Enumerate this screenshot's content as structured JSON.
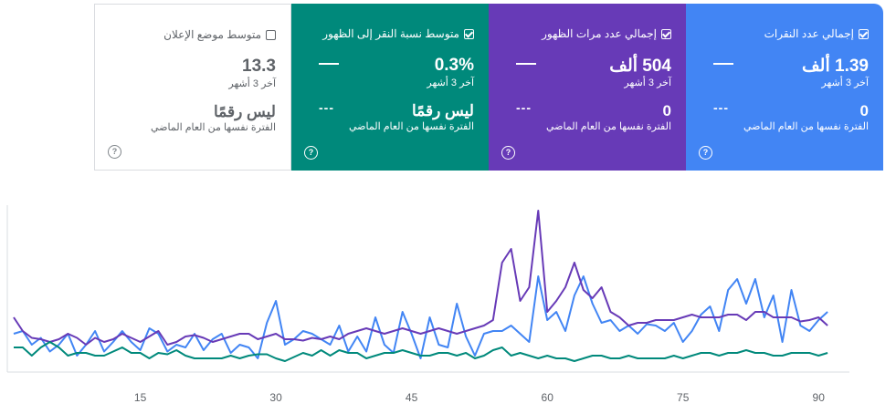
{
  "cards": [
    {
      "key": "clicks",
      "title": "إجمالي عدد النقرات",
      "checked": true,
      "value": "1.39 ألف",
      "period": "آخر 3 أشهر",
      "compare_value": "0",
      "compare_label": "الفترة نفسها من العام الماضي",
      "dash": "—",
      "dots": "---",
      "help": "?"
    },
    {
      "key": "impr",
      "title": "إجمالي عدد مرات الظهور",
      "checked": true,
      "value": "504 ألف",
      "period": "آخر 3 أشهر",
      "compare_value": "0",
      "compare_label": "الفترة نفسها من العام الماضي",
      "dash": "—",
      "dots": "---",
      "help": "?"
    },
    {
      "key": "ctr",
      "title": "متوسط نسبة النقر إلى الظهور",
      "checked": true,
      "value": "0.3%",
      "period": "آخر 3 أشهر",
      "compare_value": "ليس رقمًا",
      "compare_label": "الفترة نفسها من العام الماضي",
      "dash": "—",
      "dots": "---",
      "help": "?"
    },
    {
      "key": "pos",
      "title": "متوسط موضع الإعلان",
      "checked": false,
      "value": "13.3",
      "period": "آخر 3 أشهر",
      "compare_value": "ليس رقمًا",
      "compare_label": "الفترة نفسها من العام الماضي",
      "dash": "",
      "dots": "",
      "help": "?"
    }
  ],
  "chart_data": {
    "type": "line",
    "x_ticks": [
      15,
      30,
      45,
      60,
      75,
      90
    ],
    "xlim": [
      1,
      92
    ],
    "ylim": [
      0,
      100
    ],
    "colors": {
      "clicks": "#4285f4",
      "impr": "#673ab7",
      "ctr": "#00897b"
    },
    "series": [
      {
        "key": "clicks",
        "values": [
          28,
          30,
          20,
          25,
          15,
          20,
          28,
          12,
          20,
          30,
          15,
          22,
          30,
          22,
          16,
          32,
          28,
          15,
          20,
          18,
          28,
          16,
          24,
          28,
          14,
          20,
          18,
          10,
          36,
          52,
          20,
          24,
          30,
          28,
          24,
          20,
          34,
          15,
          26,
          15,
          40,
          20,
          14,
          44,
          28,
          10,
          40,
          20,
          18,
          50,
          26,
          12,
          28,
          30,
          30,
          34,
          28,
          22,
          70,
          38,
          44,
          30,
          56,
          70,
          50,
          36,
          38,
          30,
          34,
          28,
          35,
          34,
          30,
          36,
          22,
          30,
          42,
          48,
          30,
          60,
          68,
          50,
          68,
          40,
          56,
          22,
          60,
          34,
          30,
          38,
          44
        ]
      },
      {
        "key": "impr",
        "values": [
          40,
          30,
          25,
          24,
          22,
          24,
          28,
          25,
          20,
          25,
          22,
          24,
          28,
          25,
          22,
          26,
          30,
          20,
          22,
          26,
          27,
          25,
          22,
          24,
          26,
          28,
          28,
          24,
          26,
          28,
          24,
          24,
          23,
          25,
          24,
          26,
          24,
          28,
          30,
          32,
          30,
          28,
          30,
          32,
          30,
          28,
          30,
          32,
          30,
          28,
          30,
          32,
          34,
          38,
          80,
          90,
          52,
          62,
          118,
          44,
          52,
          62,
          80,
          60,
          54,
          62,
          44,
          40,
          34,
          36,
          36,
          38,
          38,
          38,
          40,
          42,
          40,
          40,
          40,
          42,
          42,
          38,
          44,
          44,
          40,
          40,
          40,
          37,
          38,
          40,
          34
        ]
      },
      {
        "key": "ctr",
        "values": [
          18,
          18,
          12,
          18,
          22,
          18,
          12,
          14,
          14,
          12,
          12,
          15,
          18,
          14,
          14,
          10,
          14,
          13,
          16,
          12,
          10,
          10,
          10,
          10,
          12,
          10,
          12,
          13,
          13,
          10,
          8,
          11,
          14,
          12,
          16,
          12,
          16,
          14,
          14,
          10,
          12,
          14,
          14,
          16,
          14,
          12,
          12,
          14,
          14,
          12,
          14,
          10,
          12,
          16,
          18,
          12,
          14,
          12,
          10,
          12,
          10,
          10,
          8,
          10,
          12,
          12,
          10,
          10,
          12,
          10,
          10,
          10,
          10,
          12,
          10,
          12,
          14,
          14,
          12,
          14,
          14,
          16,
          14,
          14,
          12,
          12,
          14,
          14,
          14,
          12,
          14
        ]
      }
    ]
  }
}
